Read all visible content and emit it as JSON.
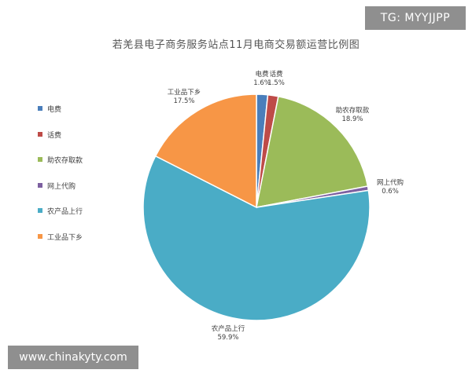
{
  "watermarks": {
    "top_right": "TG: MYYJJPP",
    "bottom_left": "www.chinakyty.com"
  },
  "chart_data": {
    "type": "pie",
    "title": "若羌县电子商务服务站点11月电商交易额运营比例图",
    "legend_position": "left",
    "slices": [
      {
        "label": "电费",
        "value": 1.6,
        "display": "1.6%",
        "color": "#4a7ebb"
      },
      {
        "label": "话费",
        "value": 1.5,
        "display": "1.5%",
        "color": "#be4b48"
      },
      {
        "label": "助农存取款",
        "value": 18.9,
        "display": "18.9%",
        "color": "#9bbb59"
      },
      {
        "label": "网上代购",
        "value": 0.6,
        "display": "0.6%",
        "color": "#7d60a0"
      },
      {
        "label": "农产品上行",
        "value": 59.9,
        "display": "59.9%",
        "color": "#4aacc6"
      },
      {
        "label": "工业品下乡",
        "value": 17.5,
        "display": "17.5%",
        "color": "#f79646"
      }
    ]
  }
}
